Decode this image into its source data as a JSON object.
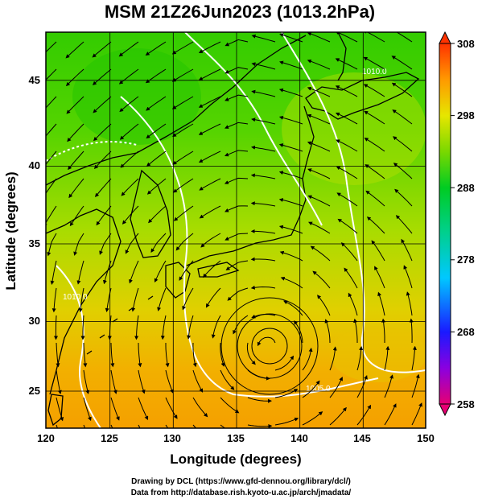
{
  "title": "MSM 21Z26Jun2023 (1013.2hPa)",
  "xaxis": {
    "label": "Longitude (degrees)",
    "range": [
      120,
      150
    ],
    "ticks": [
      "120",
      "125",
      "130",
      "135",
      "140",
      "145",
      "150"
    ]
  },
  "yaxis": {
    "label": "Latitude  (degrees)",
    "range": [
      22.5,
      48
    ],
    "ticks": [
      "25",
      "30",
      "35",
      "40",
      "45"
    ]
  },
  "colorbar": {
    "range": [
      258,
      308
    ],
    "ticks": [
      "308",
      "298",
      "288",
      "278",
      "268",
      "258"
    ],
    "colors": [
      "#e60073",
      "#8a00e0",
      "#1a1aff",
      "#00c8ff",
      "#00d08a",
      "#00cc22",
      "#7ad800",
      "#e6e600",
      "#ff9900",
      "#ff3300"
    ]
  },
  "contours": [
    {
      "label": "1005.0"
    },
    {
      "label": "1010.0"
    },
    {
      "label": "1010.0"
    }
  ],
  "credits": {
    "line1": "Drawing by DCL (https://www.gfd-dennou.org/library/dcl/)",
    "line2": "Data from http://database.rish.kyoto-u.ac.jp/arch/jmadata/"
  }
}
